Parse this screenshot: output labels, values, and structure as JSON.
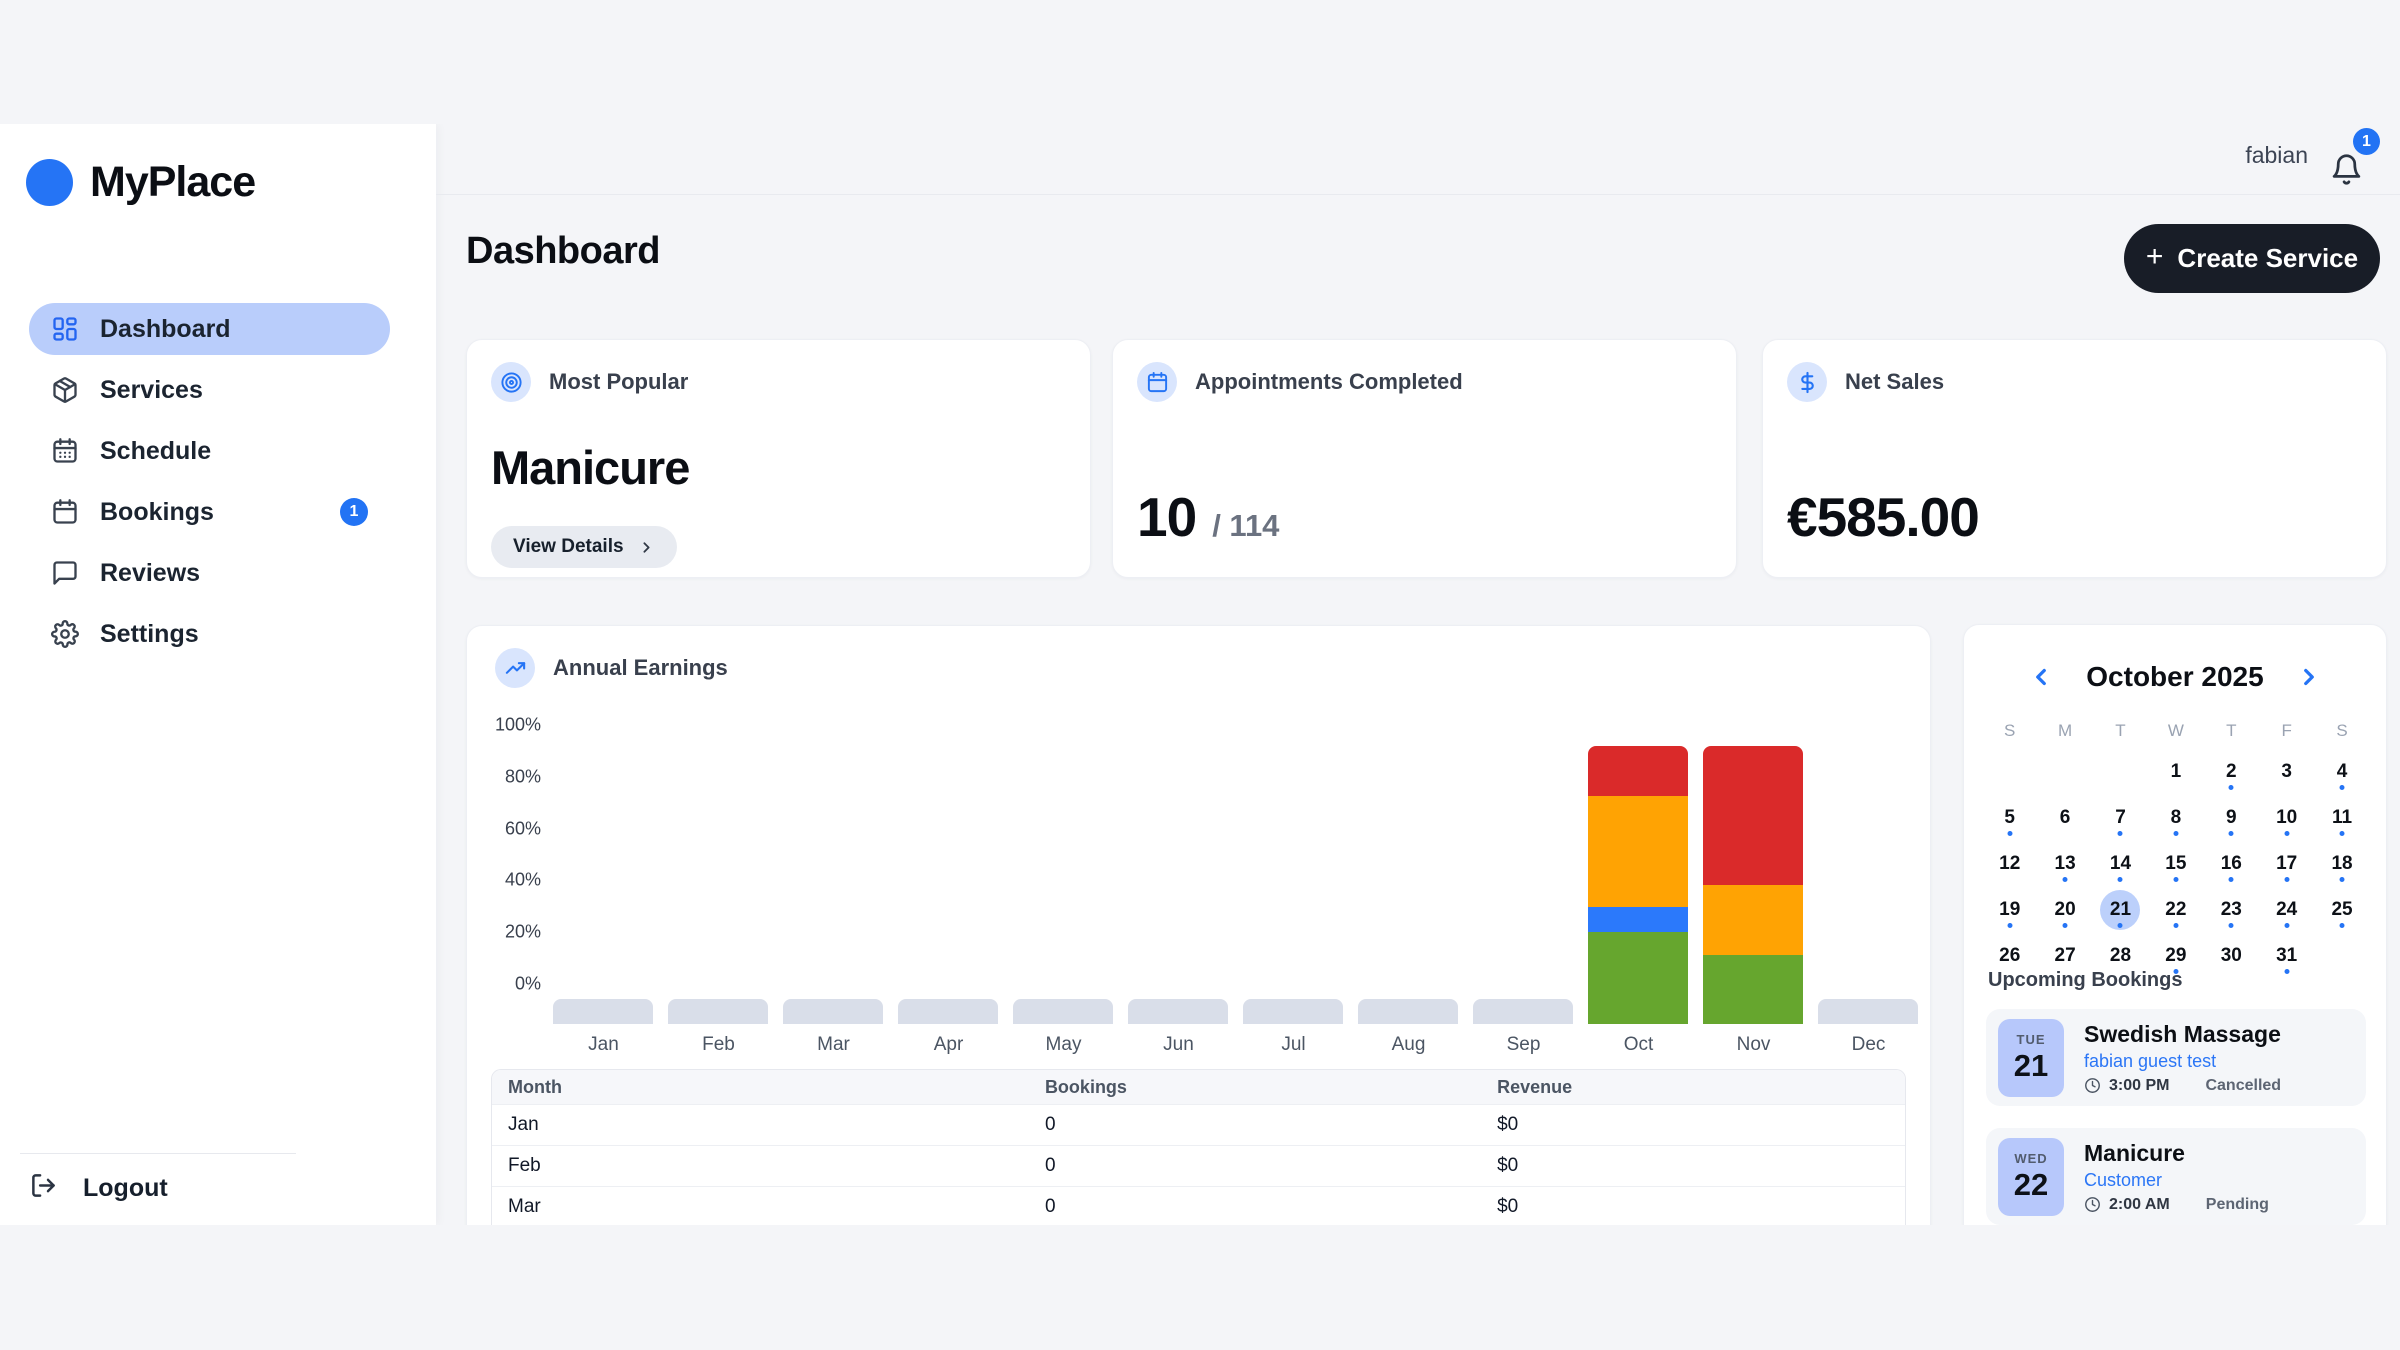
{
  "brand": {
    "name": "MyPlace"
  },
  "topbar": {
    "username": "fabian",
    "notification_count": "1"
  },
  "sidebar": {
    "items": [
      {
        "label": "Dashboard",
        "icon": "dashboard-grid",
        "active": true
      },
      {
        "label": "Services",
        "icon": "package"
      },
      {
        "label": "Schedule",
        "icon": "calendar-days"
      },
      {
        "label": "Bookings",
        "icon": "calendar",
        "badge": "1"
      },
      {
        "label": "Reviews",
        "icon": "chat-bubble"
      },
      {
        "label": "Settings",
        "icon": "gear"
      }
    ],
    "logout_label": "Logout"
  },
  "page": {
    "title": "Dashboard",
    "create_button_label": "Create Service"
  },
  "stats": [
    {
      "label": "Most Popular",
      "value": "Manicure",
      "action_label": "View Details"
    },
    {
      "label": "Appointments Completed",
      "value": "10",
      "total_suffix": "/ 114"
    },
    {
      "label": "Net Sales",
      "value": "€585.00"
    }
  ],
  "chart_data": {
    "type": "bar",
    "stacked": true,
    "title": "Annual Earnings",
    "x": [
      "Jan",
      "Feb",
      "Mar",
      "Apr",
      "May",
      "Jun",
      "Jul",
      "Aug",
      "Sep",
      "Oct",
      "Nov",
      "Dec"
    ],
    "y_ticks": [
      "100%",
      "80%",
      "60%",
      "40%",
      "20%",
      "0%"
    ],
    "ylim": [
      0,
      100
    ],
    "grid": false,
    "legend": false,
    "series": [
      {
        "name": "segment-green",
        "color": "#66a62e",
        "values": [
          0,
          0,
          0,
          0,
          0,
          0,
          0,
          0,
          0,
          33,
          25,
          0
        ]
      },
      {
        "name": "segment-blue",
        "color": "#2b79fb",
        "values": [
          0,
          0,
          0,
          0,
          0,
          0,
          0,
          0,
          0,
          9,
          0,
          0
        ]
      },
      {
        "name": "segment-orange",
        "color": "#ffa303",
        "values": [
          0,
          0,
          0,
          0,
          0,
          0,
          0,
          0,
          0,
          40,
          25,
          0
        ]
      },
      {
        "name": "segment-red",
        "color": "#da2a2a",
        "values": [
          0,
          0,
          0,
          0,
          0,
          0,
          0,
          0,
          0,
          18,
          50,
          0
        ]
      }
    ],
    "empty_month_stub_color": "#d9dee9"
  },
  "earnings_table": {
    "headers": [
      "Month",
      "Bookings",
      "Revenue"
    ],
    "rows": [
      [
        "Jan",
        "0",
        "$0"
      ],
      [
        "Feb",
        "0",
        "$0"
      ],
      [
        "Mar",
        "0",
        "$0"
      ]
    ]
  },
  "calendar": {
    "title": "October 2025",
    "weekdays": [
      "S",
      "M",
      "T",
      "W",
      "T",
      "F",
      "S"
    ],
    "weeks": [
      [
        null,
        null,
        null,
        1,
        2,
        3,
        4
      ],
      [
        5,
        6,
        7,
        8,
        9,
        10,
        11
      ],
      [
        12,
        13,
        14,
        15,
        16,
        17,
        18
      ],
      [
        19,
        20,
        21,
        22,
        23,
        24,
        25
      ],
      [
        26,
        27,
        28,
        29,
        30,
        31,
        null
      ]
    ],
    "dotted_days": [
      2,
      4,
      5,
      7,
      8,
      9,
      10,
      11,
      13,
      14,
      15,
      16,
      17,
      18,
      19,
      20,
      21,
      22,
      23,
      24,
      25,
      29,
      31
    ],
    "selected_day": 21
  },
  "bookings": {
    "title": "Upcoming Bookings",
    "items": [
      {
        "day_abbrev": "TUE",
        "day": "21",
        "service": "Swedish Massage",
        "customer": "fabian guest test",
        "time": "3:00 PM",
        "status": "Cancelled"
      },
      {
        "day_abbrev": "WED",
        "day": "22",
        "service": "Manicure",
        "customer": "Customer",
        "time": "2:00 AM",
        "status": "Pending"
      }
    ]
  },
  "colors": {
    "accent_blue": "#2574f5",
    "active_pill": "#b9cdfb",
    "icon_circle_bg": "#d9e5fd",
    "dark_button": "#181d27",
    "page_bg": "#f4f5f8",
    "badge_blue": "#2273f4"
  }
}
